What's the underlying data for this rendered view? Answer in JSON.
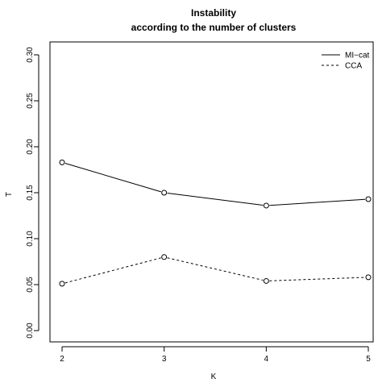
{
  "chart_data": {
    "type": "line",
    "title": "Instability",
    "subtitle": "according to the number of clusters",
    "xlabel": "K",
    "ylabel": "T",
    "x": [
      2,
      3,
      4,
      5
    ],
    "xlim": [
      2,
      5
    ],
    "ylim": [
      0.0,
      0.3
    ],
    "x_ticks": [
      "2",
      "3",
      "4",
      "5"
    ],
    "y_ticks": [
      "0.00",
      "0.05",
      "0.10",
      "0.15",
      "0.20",
      "0.25",
      "0.30"
    ],
    "series": [
      {
        "name": "MI−cat",
        "values": [
          0.183,
          0.15,
          0.136,
          0.143
        ],
        "line_style": "solid"
      },
      {
        "name": "CCA",
        "values": [
          0.051,
          0.08,
          0.054,
          0.058
        ],
        "line_style": "dashed"
      }
    ],
    "legend_position": "top-right",
    "grid": false,
    "colors": {
      "line": "#000000",
      "axis": "#000000",
      "background": "#ffffff"
    }
  }
}
